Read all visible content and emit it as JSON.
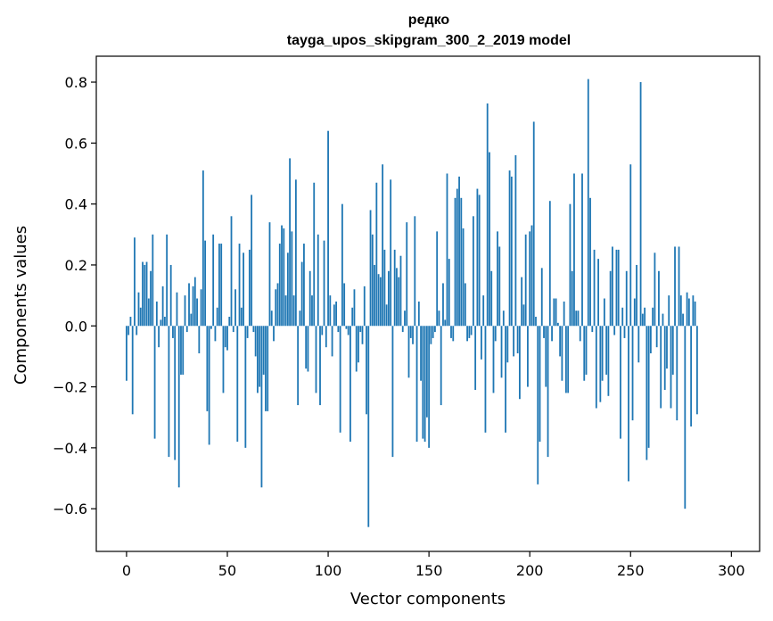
{
  "chart_data": {
    "type": "bar",
    "title": "редко",
    "subtitle": "tayga_upos_skipgram_300_2_2019 model",
    "xlabel": "Vector components",
    "ylabel": "Components values",
    "xlim": [
      -15,
      314
    ],
    "ylim": [
      -0.74,
      0.885
    ],
    "xticks": [
      0,
      50,
      100,
      150,
      200,
      250,
      300
    ],
    "yticks": [
      -0.6,
      -0.4,
      -0.2,
      0.0,
      0.2,
      0.4,
      0.6,
      0.8
    ],
    "ytick_labels": [
      "−0.6",
      "−0.4",
      "−0.2",
      "0.0",
      "0.2",
      "0.4",
      "0.6",
      "0.8"
    ],
    "bar_color": "#1f77b4",
    "grid": false,
    "values": [
      -0.18,
      -0.03,
      0.03,
      -0.29,
      0.29,
      -0.03,
      0.11,
      0.06,
      0.21,
      0.2,
      0.21,
      0.09,
      0.18,
      0.3,
      -0.37,
      0.08,
      -0.07,
      0.02,
      0.13,
      0.03,
      0.3,
      -0.43,
      0.2,
      -0.04,
      -0.44,
      0.11,
      -0.53,
      -0.16,
      -0.16,
      0.1,
      -0.02,
      0.14,
      0.04,
      0.13,
      0.16,
      0.09,
      -0.09,
      0.12,
      0.51,
      0.28,
      -0.28,
      -0.39,
      -0.01,
      0.3,
      -0.05,
      0.06,
      0.27,
      0.27,
      -0.22,
      -0.07,
      -0.08,
      0.03,
      0.36,
      -0.02,
      0.12,
      -0.38,
      0.27,
      0.06,
      0.24,
      -0.4,
      -0.04,
      0.25,
      0.43,
      -0.02,
      -0.1,
      -0.22,
      -0.2,
      -0.53,
      -0.16,
      -0.28,
      -0.28,
      0.34,
      0.05,
      -0.05,
      0.12,
      0.14,
      0.27,
      0.33,
      0.32,
      0.1,
      0.24,
      0.55,
      0.31,
      0.1,
      0.48,
      -0.26,
      0.05,
      0.21,
      0.27,
      -0.14,
      -0.15,
      0.18,
      0.1,
      0.47,
      -0.22,
      0.3,
      -0.26,
      -0.03,
      0.28,
      -0.07,
      0.64,
      0.1,
      -0.1,
      0.07,
      0.08,
      -0.02,
      -0.35,
      0.4,
      0.14,
      -0.01,
      -0.03,
      -0.38,
      0.06,
      0.12,
      -0.15,
      -0.12,
      -0.02,
      -0.06,
      0.13,
      -0.29,
      -0.66,
      0.38,
      0.3,
      0.2,
      0.47,
      0.17,
      0.16,
      0.53,
      0.25,
      0.07,
      0.18,
      0.48,
      -0.43,
      0.25,
      0.19,
      0.16,
      0.23,
      -0.02,
      0.05,
      0.34,
      -0.17,
      -0.04,
      -0.06,
      0.36,
      -0.38,
      0.08,
      -0.18,
      -0.37,
      -0.38,
      -0.3,
      -0.4,
      -0.06,
      -0.04,
      -0.02,
      0.31,
      0.05,
      -0.26,
      0.14,
      0.02,
      0.5,
      0.22,
      -0.04,
      -0.05,
      0.42,
      0.45,
      0.49,
      0.42,
      0.32,
      0.14,
      -0.05,
      -0.04,
      -0.03,
      0.36,
      -0.21,
      0.45,
      0.43,
      -0.11,
      0.1,
      -0.35,
      0.73,
      0.57,
      0.18,
      -0.22,
      -0.05,
      0.31,
      0.26,
      -0.17,
      0.05,
      -0.35,
      -0.12,
      0.51,
      0.49,
      -0.1,
      0.56,
      -0.09,
      -0.24,
      0.16,
      0.07,
      0.3,
      -0.2,
      0.31,
      0.33,
      0.67,
      0.03,
      -0.52,
      -0.38,
      0.19,
      -0.04,
      -0.2,
      -0.43,
      0.41,
      -0.05,
      0.09,
      0.09,
      0.01,
      -0.1,
      -0.18,
      0.08,
      -0.22,
      -0.22,
      0.4,
      0.18,
      0.5,
      0.05,
      0.05,
      -0.05,
      0.5,
      -0.18,
      -0.16,
      0.81,
      0.42,
      -0.02,
      0.25,
      -0.27,
      0.22,
      -0.25,
      -0.18,
      0.09,
      -0.16,
      -0.23,
      0.18,
      0.26,
      -0.03,
      0.25,
      0.25,
      -0.37,
      0.06,
      -0.04,
      0.18,
      -0.51,
      0.53,
      -0.31,
      0.09,
      0.2,
      -0.12,
      0.8,
      0.04,
      0.06,
      -0.44,
      -0.4,
      -0.09,
      0.06,
      0.24,
      -0.07,
      0.18,
      -0.27,
      0.04,
      -0.21,
      -0.14,
      0.1,
      -0.27,
      -0.16,
      0.26,
      -0.31,
      0.26,
      0.1,
      0.04,
      -0.6,
      0.11,
      0.09,
      -0.33,
      0.1,
      0.08,
      -0.29
    ]
  }
}
